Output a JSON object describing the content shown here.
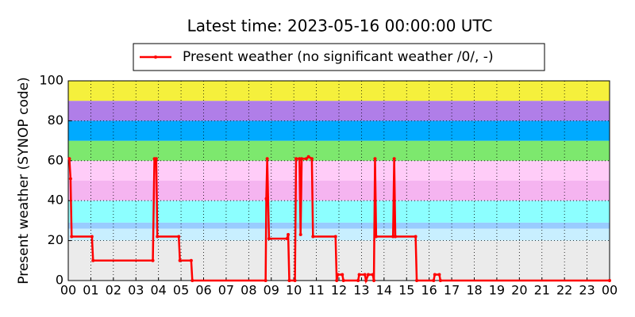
{
  "chart_data": {
    "type": "line",
    "title": "Latest time: 2023-05-16 00:00:00 UTC",
    "y_label": "Present weather (SYNOP code)",
    "x": [
      0.05,
      0.1,
      0.15,
      1.05,
      1.1,
      3.75,
      3.82,
      3.9,
      3.95,
      4.9,
      4.95,
      5.45,
      5.5,
      8.75,
      8.78,
      8.82,
      8.9,
      9.7,
      9.75,
      9.8,
      10.05,
      10.1,
      10.25,
      10.3,
      10.35,
      10.55,
      10.65,
      10.8,
      10.85,
      11.85,
      11.9,
      11.95,
      12.15,
      12.2,
      12.85,
      12.9,
      13.15,
      13.2,
      13.3,
      13.5,
      13.55,
      13.6,
      13.65,
      14.4,
      14.45,
      14.5,
      15.4,
      15.45,
      16.2,
      16.25,
      16.45,
      16.5,
      24
    ],
    "series": [
      {
        "name": "Present weather (no significant weather /0/, -)",
        "color": "#ff0000",
        "values": [
          61,
          51,
          22,
          22,
          10,
          10,
          61,
          61,
          22,
          22,
          10,
          10,
          0,
          0,
          41,
          61,
          21,
          21,
          23,
          0,
          0,
          61,
          61,
          23,
          61,
          61,
          62,
          61,
          22,
          22,
          0,
          3,
          3,
          0,
          0,
          3,
          3,
          0,
          3,
          3,
          0,
          61,
          22,
          22,
          61,
          22,
          22,
          0,
          0,
          3,
          3,
          0,
          0
        ]
      }
    ],
    "xlim": [
      0,
      24
    ],
    "xticks": [
      {
        "value": 0,
        "label": "00"
      },
      {
        "value": 1,
        "label": "01"
      },
      {
        "value": 2,
        "label": "02"
      },
      {
        "value": 3,
        "label": "03"
      },
      {
        "value": 4,
        "label": "04"
      },
      {
        "value": 5,
        "label": "05"
      },
      {
        "value": 6,
        "label": "06"
      },
      {
        "value": 7,
        "label": "07"
      },
      {
        "value": 8,
        "label": "08"
      },
      {
        "value": 9,
        "label": "09"
      },
      {
        "value": 10,
        "label": "10"
      },
      {
        "value": 11,
        "label": "11"
      },
      {
        "value": 12,
        "label": "12"
      },
      {
        "value": 13,
        "label": "13"
      },
      {
        "value": 14,
        "label": "14"
      },
      {
        "value": 15,
        "label": "15"
      },
      {
        "value": 16,
        "label": "16"
      },
      {
        "value": 17,
        "label": "17"
      },
      {
        "value": 18,
        "label": "18"
      },
      {
        "value": 19,
        "label": "19"
      },
      {
        "value": 20,
        "label": "20"
      },
      {
        "value": 21,
        "label": "21"
      },
      {
        "value": 22,
        "label": "22"
      },
      {
        "value": 23,
        "label": "23"
      },
      {
        "value": 24,
        "label": "00"
      }
    ],
    "ylim": [
      0,
      100
    ],
    "yticks": [
      0,
      20,
      40,
      60,
      80,
      100
    ],
    "grid": true,
    "bands": [
      {
        "from": 0,
        "to": 20,
        "color": "#ebebeb"
      },
      {
        "from": 20,
        "to": 26,
        "color": "#c8efff"
      },
      {
        "from": 26,
        "to": 29,
        "color": "#99ccff"
      },
      {
        "from": 29,
        "to": 40,
        "color": "#8cffff"
      },
      {
        "from": 40,
        "to": 50,
        "color": "#f5b4f0"
      },
      {
        "from": 50,
        "to": 60,
        "color": "#ffccf8"
      },
      {
        "from": 60,
        "to": 70,
        "color": "#7de86e"
      },
      {
        "from": 70,
        "to": 80,
        "color": "#00aaff"
      },
      {
        "from": 80,
        "to": 90,
        "color": "#b07ee8"
      },
      {
        "from": 90,
        "to": 100,
        "color": "#f5f03c"
      }
    ]
  }
}
